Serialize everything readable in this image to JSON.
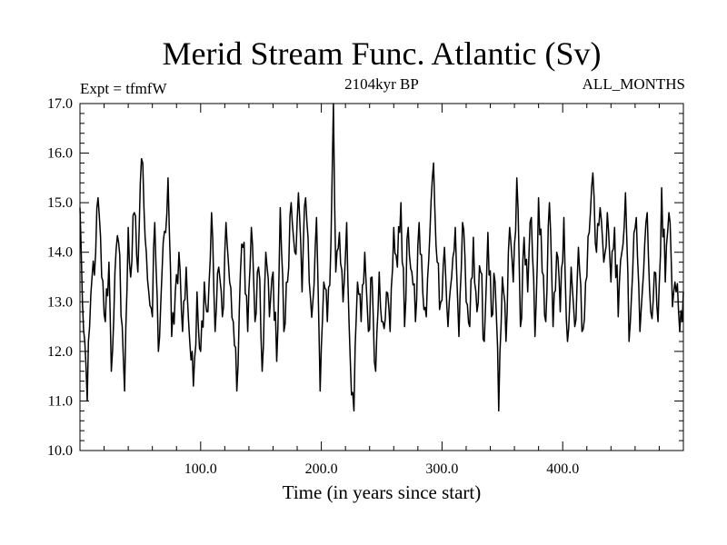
{
  "chart_data": {
    "type": "line",
    "title": "Merid Stream Func. Atlantic (Sv)",
    "subtitle": "2104kyr BP",
    "left_annotation": "Expt = tfmfW",
    "right_annotation": "ALL_MONTHS",
    "xlabel": "Time (in years since start)",
    "ylabel": "",
    "xlim": [
      0,
      500
    ],
    "ylim": [
      10.0,
      17.0
    ],
    "x_ticks": [
      {
        "value": 100,
        "label": "100.0"
      },
      {
        "value": 200,
        "label": "200.0"
      },
      {
        "value": 300,
        "label": "300.0"
      },
      {
        "value": 400,
        "label": "400.0"
      }
    ],
    "y_ticks": [
      {
        "value": 10,
        "label": "10.0"
      },
      {
        "value": 11,
        "label": "11.0"
      },
      {
        "value": 12,
        "label": "12.0"
      },
      {
        "value": 13,
        "label": "13.0"
      },
      {
        "value": 14,
        "label": "14.0"
      },
      {
        "value": 15,
        "label": "15.0"
      },
      {
        "value": 16,
        "label": "16.0"
      },
      {
        "value": 17,
        "label": "17.0"
      }
    ],
    "series": [
      {
        "name": "Merid Stream Func. Atlantic",
        "color": "#000000",
        "keypoints": [
          [
            0,
            14.9
          ],
          [
            2,
            13.0
          ],
          [
            4,
            12.2
          ],
          [
            6,
            11.0
          ],
          [
            8,
            12.5
          ],
          [
            10,
            13.5
          ],
          [
            13,
            14.0
          ],
          [
            15,
            15.1
          ],
          [
            18,
            13.5
          ],
          [
            21,
            12.6
          ],
          [
            24,
            13.8
          ],
          [
            26,
            11.6
          ],
          [
            29,
            13.6
          ],
          [
            32,
            14.2
          ],
          [
            35,
            12.5
          ],
          [
            37,
            11.2
          ],
          [
            40,
            14.5
          ],
          [
            42,
            13.5
          ],
          [
            45,
            14.8
          ],
          [
            48,
            13.6
          ],
          [
            50,
            15.4
          ],
          [
            52,
            15.8
          ],
          [
            55,
            14.0
          ],
          [
            57,
            13.2
          ],
          [
            60,
            12.7
          ],
          [
            62,
            14.6
          ],
          [
            65,
            12.0
          ],
          [
            68,
            13.6
          ],
          [
            71,
            14.4
          ],
          [
            73,
            15.5
          ],
          [
            76,
            12.3
          ],
          [
            79,
            13.2
          ],
          [
            82,
            14.0
          ],
          [
            85,
            12.4
          ],
          [
            88,
            13.7
          ],
          [
            91,
            12.2
          ],
          [
            94,
            11.3
          ],
          [
            97,
            13.2
          ],
          [
            100,
            12.0
          ],
          [
            103,
            13.4
          ],
          [
            106,
            12.8
          ],
          [
            109,
            14.8
          ],
          [
            112,
            12.4
          ],
          [
            115,
            13.7
          ],
          [
            118,
            12.7
          ],
          [
            121,
            14.6
          ],
          [
            124,
            13.4
          ],
          [
            127,
            12.6
          ],
          [
            130,
            11.2
          ],
          [
            133,
            13.6
          ],
          [
            136,
            14.2
          ],
          [
            139,
            12.4
          ],
          [
            142,
            14.5
          ],
          [
            145,
            12.6
          ],
          [
            148,
            13.7
          ],
          [
            151,
            11.6
          ],
          [
            154,
            14.0
          ],
          [
            157,
            12.7
          ],
          [
            160,
            13.6
          ],
          [
            163,
            11.8
          ],
          [
            166,
            14.9
          ],
          [
            169,
            12.4
          ],
          [
            172,
            13.4
          ],
          [
            175,
            15.0
          ],
          [
            178,
            14.0
          ],
          [
            181,
            15.2
          ],
          [
            184,
            13.2
          ],
          [
            187,
            15.1
          ],
          [
            190,
            13.4
          ],
          [
            193,
            13.0
          ],
          [
            196,
            14.7
          ],
          [
            199,
            11.2
          ],
          [
            202,
            13.4
          ],
          [
            205,
            12.6
          ],
          [
            208,
            14.2
          ],
          [
            210,
            17.0
          ],
          [
            212,
            13.6
          ],
          [
            215,
            14.4
          ],
          [
            218,
            13.0
          ],
          [
            221,
            14.6
          ],
          [
            224,
            11.8
          ],
          [
            227,
            10.8
          ],
          [
            230,
            13.4
          ],
          [
            233,
            12.6
          ],
          [
            236,
            14.0
          ],
          [
            239,
            12.4
          ],
          [
            242,
            13.5
          ],
          [
            245,
            11.6
          ],
          [
            248,
            13.6
          ],
          [
            251,
            12.6
          ],
          [
            254,
            13.2
          ],
          [
            257,
            12.4
          ],
          [
            260,
            14.5
          ],
          [
            263,
            13.7
          ],
          [
            266,
            15.0
          ],
          [
            269,
            12.5
          ],
          [
            272,
            14.5
          ],
          [
            275,
            13.6
          ],
          [
            278,
            12.6
          ],
          [
            281,
            14.6
          ],
          [
            284,
            13.2
          ],
          [
            287,
            12.7
          ],
          [
            290,
            14.4
          ],
          [
            293,
            15.8
          ],
          [
            296,
            13.8
          ],
          [
            299,
            13.0
          ],
          [
            302,
            14.1
          ],
          [
            305,
            12.5
          ],
          [
            308,
            13.5
          ],
          [
            311,
            14.5
          ],
          [
            314,
            12.3
          ],
          [
            317,
            14.6
          ],
          [
            320,
            13.0
          ],
          [
            323,
            12.5
          ],
          [
            326,
            14.3
          ],
          [
            329,
            12.8
          ],
          [
            332,
            13.6
          ],
          [
            335,
            12.2
          ],
          [
            338,
            14.4
          ],
          [
            341,
            12.7
          ],
          [
            344,
            13.4
          ],
          [
            347,
            10.8
          ],
          [
            350,
            13.5
          ],
          [
            353,
            12.2
          ],
          [
            356,
            14.5
          ],
          [
            359,
            13.4
          ],
          [
            362,
            15.5
          ],
          [
            365,
            12.5
          ],
          [
            368,
            14.3
          ],
          [
            371,
            13.2
          ],
          [
            374,
            14.7
          ],
          [
            377,
            12.3
          ],
          [
            380,
            15.1
          ],
          [
            383,
            13.6
          ],
          [
            386,
            12.6
          ],
          [
            389,
            15.0
          ],
          [
            392,
            12.5
          ],
          [
            395,
            14.0
          ],
          [
            398,
            12.8
          ],
          [
            401,
            14.7
          ],
          [
            404,
            12.2
          ],
          [
            407,
            13.7
          ],
          [
            410,
            12.5
          ],
          [
            413,
            14.1
          ],
          [
            416,
            12.4
          ],
          [
            419,
            13.4
          ],
          [
            422,
            14.4
          ],
          [
            425,
            15.6
          ],
          [
            428,
            14.0
          ],
          [
            431,
            14.9
          ],
          [
            434,
            13.8
          ],
          [
            437,
            14.8
          ],
          [
            440,
            13.4
          ],
          [
            443,
            14.5
          ],
          [
            446,
            12.7
          ],
          [
            449,
            14.0
          ],
          [
            452,
            15.2
          ],
          [
            455,
            12.2
          ],
          [
            458,
            13.6
          ],
          [
            461,
            14.7
          ],
          [
            464,
            12.4
          ],
          [
            467,
            13.6
          ],
          [
            470,
            14.8
          ],
          [
            473,
            12.8
          ],
          [
            476,
            13.6
          ],
          [
            479,
            12.6
          ],
          [
            482,
            15.3
          ],
          [
            485,
            13.4
          ],
          [
            488,
            14.8
          ],
          [
            491,
            12.9
          ],
          [
            494,
            13.2
          ],
          [
            497,
            12.4
          ],
          [
            500,
            13.2
          ]
        ]
      }
    ]
  }
}
